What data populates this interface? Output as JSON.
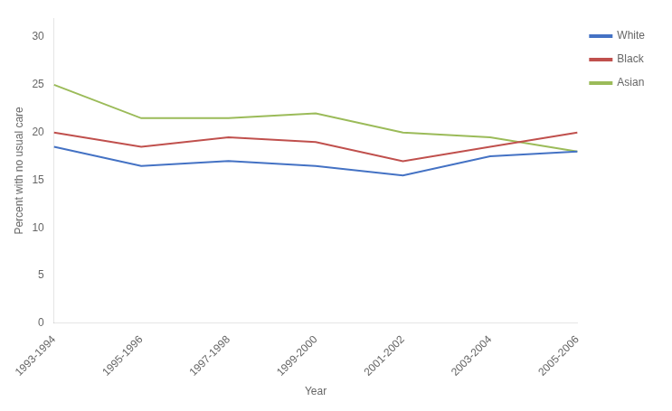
{
  "chart_data": {
    "type": "line",
    "categories": [
      "1993-1994",
      "1995-1996",
      "1997-1998",
      "1999-2000",
      "2001-2002",
      "2003-2004",
      "2005-2006"
    ],
    "series": [
      {
        "name": "White",
        "color": "#4472C4",
        "values": [
          18.5,
          16.5,
          17.0,
          16.5,
          15.5,
          17.5,
          18.0
        ]
      },
      {
        "name": "Black",
        "color": "#C0504D",
        "values": [
          20.0,
          18.5,
          19.5,
          19.0,
          17.0,
          18.5,
          20.0
        ]
      },
      {
        "name": "Asian",
        "color": "#9BBB59",
        "values": [
          25.0,
          21.5,
          21.5,
          22.0,
          20.0,
          19.5,
          18.0
        ]
      }
    ],
    "xlabel": "Year",
    "ylabel": "Percent with no usual care",
    "ylim": [
      0,
      32
    ],
    "yticks": [
      0,
      5,
      10,
      15,
      20,
      25,
      30
    ],
    "grid": false,
    "legend": "right"
  }
}
